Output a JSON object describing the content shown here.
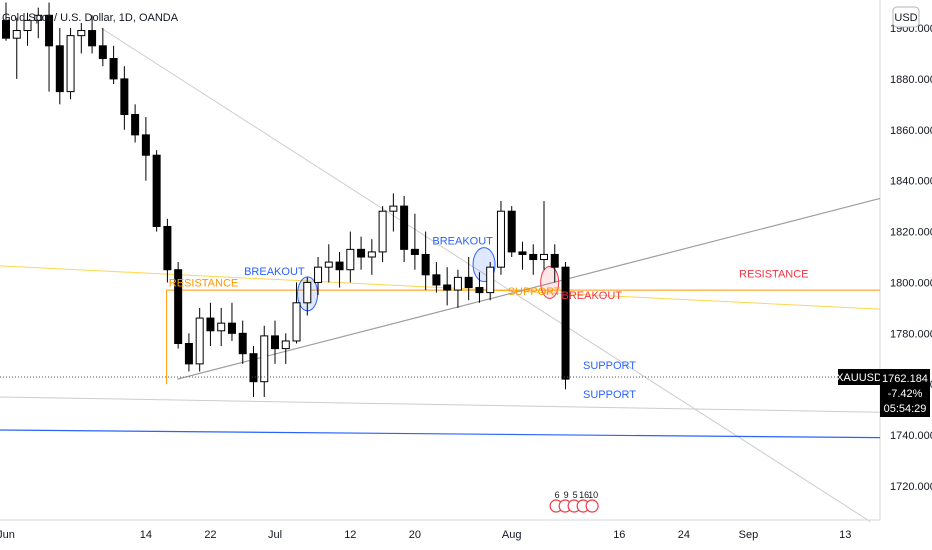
{
  "chart_data": {
    "type": "candlestick",
    "title": "Gold Spot / U.S. Dollar, 1D, OANDA",
    "symbol": "XAUUSD",
    "currency": "USD",
    "last_price": "1762.184",
    "change_pct": "-7.42%",
    "countdown": "05:54:29",
    "ylim": [
      1705,
      1910
    ],
    "y_ticks": [
      "1900.000",
      "1880.000",
      "1860.000",
      "1840.000",
      "1820.000",
      "1800.000",
      "1780.000",
      "1760.000",
      "1740.000",
      "1720.000"
    ],
    "y_tick_values": [
      1900,
      1880,
      1860,
      1840,
      1820,
      1800,
      1780,
      1760,
      1740,
      1720
    ],
    "x_ticks": [
      {
        "label": "Jun",
        "i": 0
      },
      {
        "label": "14",
        "i": 13
      },
      {
        "label": "22",
        "i": 19
      },
      {
        "label": "Jul",
        "i": 25
      },
      {
        "label": "12",
        "i": 32
      },
      {
        "label": "20",
        "i": 38
      },
      {
        "label": "Aug",
        "i": 47
      },
      {
        "label": "16",
        "i": 57
      },
      {
        "label": "24",
        "i": 63
      },
      {
        "label": "Sep",
        "i": 69
      },
      {
        "label": "13",
        "i": 78
      }
    ],
    "candles": [
      [
        1903,
        1910,
        1895,
        1896
      ],
      [
        1896,
        1904,
        1880,
        1899
      ],
      [
        1899,
        1906,
        1893,
        1903
      ],
      [
        1903,
        1908,
        1896,
        1905
      ],
      [
        1905,
        1910,
        1875,
        1893
      ],
      [
        1893,
        1900,
        1870,
        1875
      ],
      [
        1875,
        1900,
        1872,
        1897
      ],
      [
        1897,
        1902,
        1890,
        1899
      ],
      [
        1899,
        1905,
        1890,
        1893
      ],
      [
        1893,
        1900,
        1885,
        1888
      ],
      [
        1888,
        1893,
        1878,
        1880
      ],
      [
        1880,
        1885,
        1860,
        1866
      ],
      [
        1866,
        1870,
        1855,
        1858
      ],
      [
        1858,
        1865,
        1840,
        1850
      ],
      [
        1850,
        1852,
        1820,
        1822
      ],
      [
        1822,
        1825,
        1800,
        1805
      ],
      [
        1805,
        1808,
        1774,
        1776
      ],
      [
        1776,
        1780,
        1765,
        1768
      ],
      [
        1768,
        1790,
        1765,
        1786
      ],
      [
        1786,
        1792,
        1775,
        1781
      ],
      [
        1781,
        1790,
        1775,
        1784
      ],
      [
        1784,
        1792,
        1777,
        1780
      ],
      [
        1780,
        1785,
        1768,
        1772
      ],
      [
        1772,
        1775,
        1755,
        1761
      ],
      [
        1761,
        1783,
        1755,
        1779
      ],
      [
        1779,
        1785,
        1768,
        1774
      ],
      [
        1774,
        1780,
        1768,
        1777
      ],
      [
        1777,
        1800,
        1776,
        1792
      ],
      [
        1792,
        1802,
        1787,
        1800
      ],
      [
        1800,
        1810,
        1795,
        1806
      ],
      [
        1806,
        1815,
        1800,
        1808
      ],
      [
        1808,
        1812,
        1798,
        1805
      ],
      [
        1805,
        1820,
        1800,
        1813
      ],
      [
        1813,
        1818,
        1805,
        1810
      ],
      [
        1810,
        1817,
        1803,
        1812
      ],
      [
        1812,
        1830,
        1808,
        1828
      ],
      [
        1828,
        1835,
        1820,
        1830
      ],
      [
        1830,
        1834,
        1808,
        1813
      ],
      [
        1813,
        1827,
        1805,
        1811
      ],
      [
        1811,
        1820,
        1797,
        1803
      ],
      [
        1803,
        1808,
        1796,
        1799
      ],
      [
        1799,
        1806,
        1791,
        1797
      ],
      [
        1797,
        1805,
        1790,
        1802
      ],
      [
        1802,
        1810,
        1793,
        1798
      ],
      [
        1798,
        1804,
        1792,
        1796
      ],
      [
        1796,
        1808,
        1793,
        1806
      ],
      [
        1806,
        1832,
        1803,
        1828
      ],
      [
        1828,
        1830,
        1810,
        1812
      ],
      [
        1812,
        1816,
        1805,
        1811
      ],
      [
        1811,
        1815,
        1803,
        1809
      ],
      [
        1809,
        1832,
        1805,
        1811
      ],
      [
        1811,
        1815,
        1800,
        1806
      ],
      [
        1806,
        1808,
        1758,
        1762
      ]
    ],
    "annotations": [
      {
        "text": "RESISTANCE",
        "color": "#ff9800"
      },
      {
        "text": "BREAKOUT",
        "color": "#2962ff"
      },
      {
        "text": "BREAKOUT",
        "color": "#2962ff"
      },
      {
        "text": "SUPPORT",
        "color": "#ff9800"
      },
      {
        "text": "BREAKOUT",
        "color": "#f23645"
      },
      {
        "text": "RESISTANCE",
        "color": "#f23645"
      },
      {
        "text": "SUPPORT",
        "color": "#2962ff"
      },
      {
        "text": "SUPPORT",
        "color": "#2962ff"
      }
    ],
    "event_badges": [
      "6",
      "9",
      "5",
      "16",
      "10"
    ],
    "colors": {
      "bull_fill": "#ffffff",
      "bear_fill": "#000000",
      "candle_stroke": "#000000",
      "resistance_line": "#ff9800",
      "trend_line": "#9e9e9e",
      "support_line": "#2962ff",
      "price_label_bg": "#000000"
    }
  }
}
